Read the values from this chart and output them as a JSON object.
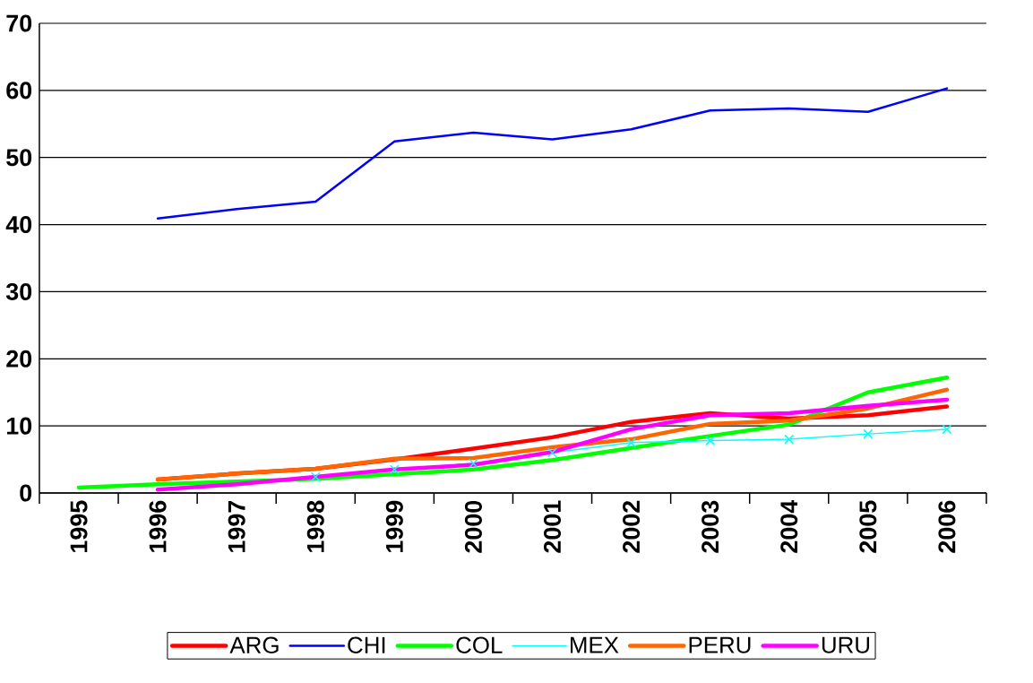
{
  "chart_data": {
    "type": "line",
    "categories": [
      "1995",
      "1996",
      "1997",
      "1998",
      "1999",
      "2000",
      "2001",
      "2002",
      "2003",
      "2004",
      "2005",
      "2006"
    ],
    "ylim": [
      0,
      70
    ],
    "yticks": [
      0,
      10,
      20,
      30,
      40,
      50,
      60,
      70
    ],
    "grid": "y",
    "legend": "bottom",
    "series": [
      {
        "name": "ARG",
        "color": "#ff0000",
        "values": [
          null,
          2.0,
          2.9,
          3.6,
          5.0,
          6.6,
          8.3,
          10.6,
          11.9,
          11.1,
          11.6,
          12.9
        ]
      },
      {
        "name": "CHI",
        "color": "#0000ff",
        "values": [
          null,
          40.9,
          42.3,
          43.4,
          52.4,
          53.7,
          52.7,
          54.2,
          57.0,
          57.3,
          56.8,
          60.3
        ]
      },
      {
        "name": "COL",
        "color": "#00ff00",
        "values": [
          0.8,
          1.3,
          1.7,
          2.1,
          2.8,
          3.5,
          4.9,
          6.7,
          8.5,
          10.2,
          15.0,
          17.2
        ]
      },
      {
        "name": "MEX",
        "color": "#00ffff",
        "marker": "cross",
        "values": [
          null,
          null,
          null,
          2.4,
          3.5,
          4.4,
          6.0,
          7.5,
          7.8,
          8.0,
          8.8,
          9.5
        ]
      },
      {
        "name": "PERU",
        "color": "#ff6600",
        "values": [
          null,
          2.0,
          2.9,
          3.6,
          5.1,
          5.2,
          6.8,
          8.0,
          10.3,
          10.8,
          12.6,
          15.4
        ]
      },
      {
        "name": "URU",
        "color": "#ff00ff",
        "values": [
          null,
          0.5,
          1.3,
          2.4,
          3.5,
          4.2,
          6.1,
          9.5,
          11.6,
          11.9,
          13.0,
          13.9
        ]
      }
    ]
  }
}
